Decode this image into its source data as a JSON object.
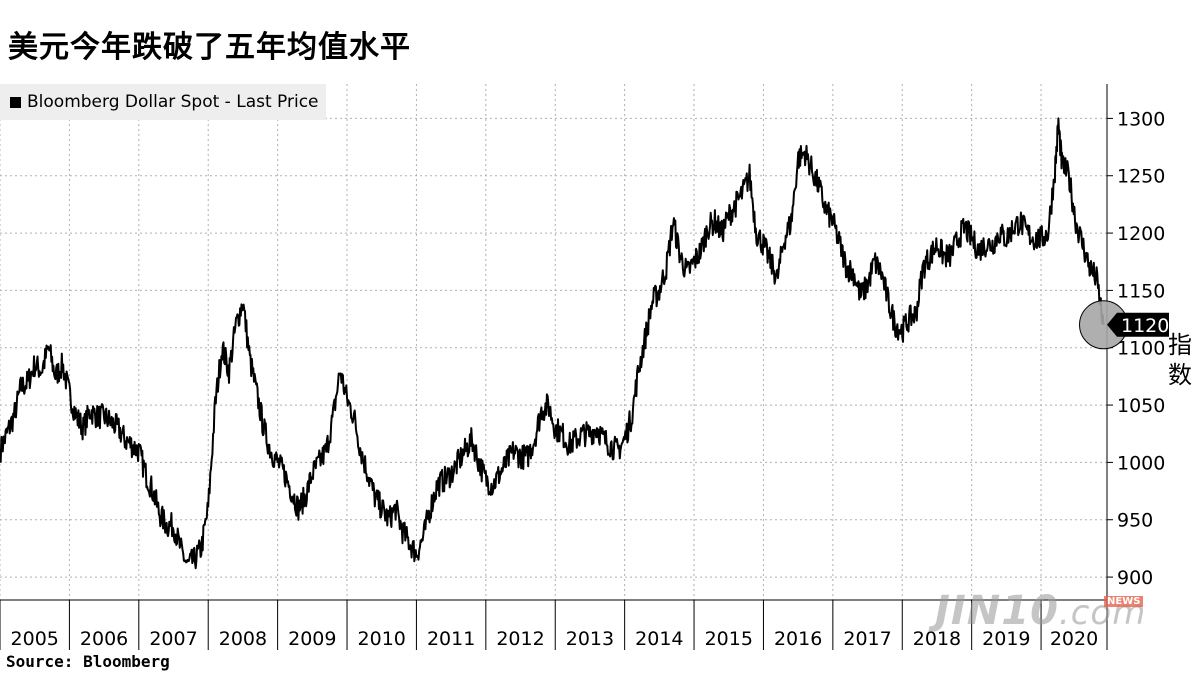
{
  "title": "美元今年跌破了五年均值水平",
  "legend": {
    "label": "Bloomberg Dollar Spot - Last Price"
  },
  "source": "Source:  Bloomberg",
  "unit_label": "指数",
  "watermark": {
    "main": "JIN10",
    "suffix": ".com",
    "tag": "NEWS"
  },
  "colors": {
    "line": "#000000",
    "grid": "#b0b0b0",
    "marker_fill": "#a6a6a6",
    "label_bg": "#000000"
  },
  "chart_data": {
    "type": "line",
    "series": [
      {
        "name": "Bloomberg Dollar Spot - Last Price"
      }
    ],
    "x_ticks": [
      "2005",
      "2006",
      "2007",
      "2008",
      "2009",
      "2010",
      "2011",
      "2012",
      "2013",
      "2014",
      "2015",
      "2016",
      "2017",
      "2018",
      "2019",
      "2020"
    ],
    "y_ticks": [
      900,
      950,
      1000,
      1050,
      1100,
      1150,
      1200,
      1250,
      1300
    ],
    "ylim": [
      880,
      1330
    ],
    "xlim": [
      2005.0,
      2020.95
    ],
    "last_value": 1120,
    "last_value_label": "1120",
    "grid": true,
    "legend_position": "top-left",
    "x": [
      2005.0,
      2005.1,
      2005.2,
      2005.3,
      2005.4,
      2005.5,
      2005.6,
      2005.7,
      2005.8,
      2005.9,
      2006.0,
      2006.1,
      2006.2,
      2006.3,
      2006.4,
      2006.5,
      2006.6,
      2006.7,
      2006.8,
      2006.9,
      2007.0,
      2007.1,
      2007.2,
      2007.3,
      2007.4,
      2007.5,
      2007.6,
      2007.7,
      2007.8,
      2007.9,
      2008.0,
      2008.1,
      2008.2,
      2008.3,
      2008.4,
      2008.5,
      2008.6,
      2008.7,
      2008.8,
      2008.9,
      2009.0,
      2009.1,
      2009.2,
      2009.3,
      2009.4,
      2009.5,
      2009.6,
      2009.7,
      2009.8,
      2009.9,
      2010.0,
      2010.1,
      2010.2,
      2010.3,
      2010.4,
      2010.5,
      2010.6,
      2010.7,
      2010.8,
      2010.9,
      2011.0,
      2011.1,
      2011.2,
      2011.3,
      2011.4,
      2011.5,
      2011.6,
      2011.7,
      2011.8,
      2011.9,
      2012.0,
      2012.1,
      2012.2,
      2012.3,
      2012.4,
      2012.5,
      2012.6,
      2012.7,
      2012.8,
      2012.9,
      2013.0,
      2013.1,
      2013.2,
      2013.3,
      2013.4,
      2013.5,
      2013.6,
      2013.7,
      2013.8,
      2013.9,
      2014.0,
      2014.1,
      2014.2,
      2014.3,
      2014.4,
      2014.5,
      2014.6,
      2014.7,
      2014.8,
      2014.9,
      2015.0,
      2015.1,
      2015.2,
      2015.3,
      2015.4,
      2015.5,
      2015.6,
      2015.7,
      2015.8,
      2015.9,
      2016.0,
      2016.1,
      2016.2,
      2016.3,
      2016.4,
      2016.5,
      2016.6,
      2016.7,
      2016.8,
      2016.9,
      2017.0,
      2017.1,
      2017.2,
      2017.3,
      2017.4,
      2017.5,
      2017.6,
      2017.7,
      2017.8,
      2017.9,
      2018.0,
      2018.1,
      2018.2,
      2018.3,
      2018.4,
      2018.5,
      2018.6,
      2018.7,
      2018.8,
      2018.9,
      2019.0,
      2019.1,
      2019.2,
      2019.3,
      2019.4,
      2019.5,
      2019.6,
      2019.7,
      2019.8,
      2019.9,
      2020.0,
      2020.1,
      2020.2,
      2020.25,
      2020.3,
      2020.4,
      2020.5,
      2020.6,
      2020.7,
      2020.8,
      2020.9
    ],
    "y": [
      1010,
      1025,
      1040,
      1065,
      1070,
      1085,
      1080,
      1100,
      1075,
      1085,
      1060,
      1040,
      1030,
      1045,
      1040,
      1040,
      1035,
      1030,
      1020,
      1015,
      1010,
      990,
      975,
      955,
      945,
      945,
      925,
      910,
      915,
      925,
      960,
      1050,
      1100,
      1080,
      1120,
      1140,
      1090,
      1060,
      1030,
      1010,
      1000,
      990,
      975,
      960,
      970,
      990,
      1000,
      1010,
      1040,
      1080,
      1055,
      1040,
      1010,
      990,
      970,
      960,
      950,
      960,
      940,
      930,
      920,
      935,
      960,
      980,
      985,
      990,
      1000,
      1010,
      1020,
      1000,
      985,
      980,
      990,
      1000,
      1010,
      1005,
      1005,
      1020,
      1045,
      1050,
      1030,
      1025,
      1015,
      1020,
      1025,
      1025,
      1030,
      1020,
      1015,
      1010,
      1020,
      1040,
      1080,
      1110,
      1140,
      1150,
      1170,
      1210,
      1180,
      1165,
      1175,
      1185,
      1205,
      1210,
      1200,
      1215,
      1225,
      1235,
      1250,
      1200,
      1190,
      1175,
      1160,
      1195,
      1210,
      1265,
      1270,
      1255,
      1240,
      1220,
      1210,
      1190,
      1170,
      1165,
      1145,
      1155,
      1175,
      1165,
      1140,
      1120,
      1115,
      1125,
      1130,
      1170,
      1180,
      1190,
      1180,
      1180,
      1195,
      1205,
      1195,
      1185,
      1190,
      1190,
      1200,
      1195,
      1205,
      1210,
      1200,
      1195,
      1195,
      1200,
      1255,
      1295,
      1260,
      1250,
      1210,
      1190,
      1170,
      1160,
      1120
    ]
  }
}
